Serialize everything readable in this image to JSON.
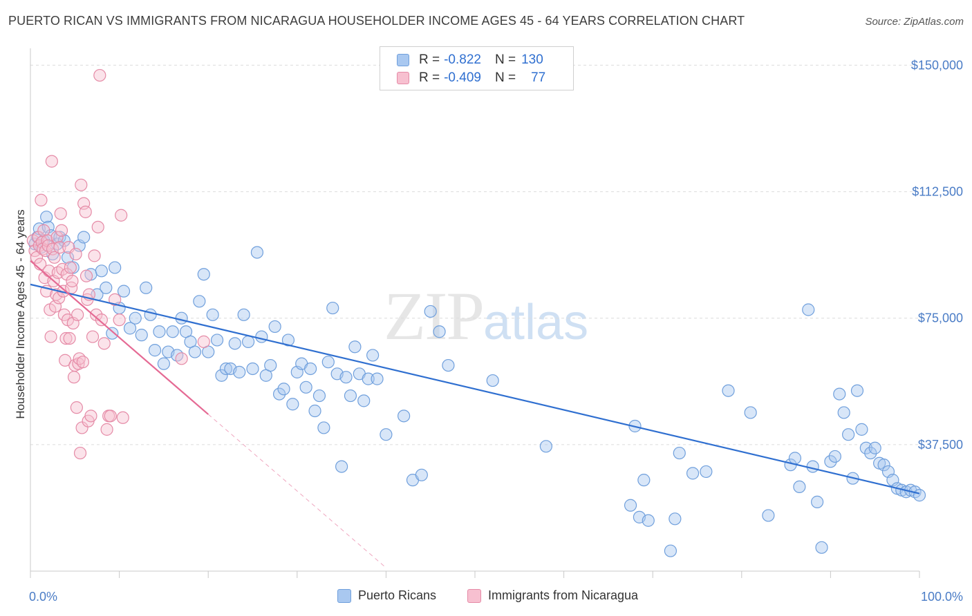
{
  "title": "PUERTO RICAN VS IMMIGRANTS FROM NICARAGUA HOUSEHOLDER INCOME AGES 45 - 64 YEARS CORRELATION CHART",
  "source": "Source: ZipAtlas.com",
  "watermark": {
    "zip": "ZIP",
    "atlas": "atlas"
  },
  "legend": {
    "rows": [
      {
        "r_label": "R =",
        "r_value": "-0.822",
        "n_label": "N =",
        "n_value": "130",
        "color": "#a9c8f0",
        "border": "#6f9fdc"
      },
      {
        "r_label": "R =",
        "r_value": "-0.409",
        "n_label": "N =",
        "n_value": "77",
        "color": "#f7c0d0",
        "border": "#e58aa6"
      }
    ]
  },
  "bottom_legend": [
    {
      "label": "Puerto Ricans",
      "color": "#a9c8f0",
      "border": "#6f9fdc"
    },
    {
      "label": "Immigrants from Nicaragua",
      "color": "#f7c0d0",
      "border": "#e58aa6"
    }
  ],
  "chart_data": {
    "type": "scatter",
    "title": "PUERTO RICAN VS IMMIGRANTS FROM NICARAGUA HOUSEHOLDER INCOME AGES 45 - 64 YEARS CORRELATION CHART",
    "xlabel": "",
    "ylabel": "Householder Income Ages 45 - 64 years",
    "xlim": [
      0,
      100
    ],
    "ylim": [
      0,
      155000
    ],
    "x_tick_labels": [
      "0.0%",
      "100.0%"
    ],
    "y_ticks": [
      37500,
      75000,
      112500,
      150000
    ],
    "y_tick_labels": [
      "$37,500",
      "$75,000",
      "$112,500",
      "$150,000"
    ],
    "grid": true,
    "series": [
      {
        "name": "Puerto Ricans",
        "color": "#a9c8f0",
        "stroke": "#6f9fdc",
        "trend": {
          "x": [
            0,
            100
          ],
          "y": [
            85000,
            23000
          ],
          "color": "#2f6fd0"
        },
        "points": [
          [
            0.5,
            97000
          ],
          [
            0.8,
            99000
          ],
          [
            1.0,
            101500
          ],
          [
            1.2,
            96000
          ],
          [
            1.5,
            98000
          ],
          [
            1.8,
            105000
          ],
          [
            2.0,
            102000
          ],
          [
            2.3,
            99500
          ],
          [
            2.5,
            94000
          ],
          [
            3.0,
            97000
          ],
          [
            3.3,
            99000
          ],
          [
            3.8,
            98000
          ],
          [
            4.2,
            93000
          ],
          [
            4.8,
            90000
          ],
          [
            5.5,
            96500
          ],
          [
            6.0,
            99000
          ],
          [
            6.8,
            88000
          ],
          [
            7.5,
            82000
          ],
          [
            8.0,
            89000
          ],
          [
            8.5,
            84000
          ],
          [
            9.2,
            70500
          ],
          [
            9.5,
            90000
          ],
          [
            10.0,
            78000
          ],
          [
            10.5,
            83000
          ],
          [
            11.2,
            72000
          ],
          [
            11.8,
            75000
          ],
          [
            12.5,
            70000
          ],
          [
            13.0,
            84000
          ],
          [
            13.5,
            76000
          ],
          [
            14.0,
            65500
          ],
          [
            14.5,
            71000
          ],
          [
            15.0,
            61500
          ],
          [
            15.5,
            65000
          ],
          [
            16.0,
            71000
          ],
          [
            16.5,
            64000
          ],
          [
            17.0,
            75000
          ],
          [
            17.5,
            71000
          ],
          [
            18.0,
            68000
          ],
          [
            18.5,
            65000
          ],
          [
            19.0,
            80000
          ],
          [
            19.5,
            88000
          ],
          [
            20.0,
            65000
          ],
          [
            20.5,
            76000
          ],
          [
            21.0,
            68500
          ],
          [
            21.5,
            58000
          ],
          [
            22.0,
            60000
          ],
          [
            22.5,
            60000
          ],
          [
            23.0,
            67500
          ],
          [
            23.5,
            59000
          ],
          [
            24.0,
            76000
          ],
          [
            24.5,
            68000
          ],
          [
            25.0,
            60000
          ],
          [
            25.5,
            94500
          ],
          [
            26.0,
            69500
          ],
          [
            26.5,
            58000
          ],
          [
            27.0,
            61000
          ],
          [
            27.5,
            72500
          ],
          [
            28.0,
            52500
          ],
          [
            28.5,
            54000
          ],
          [
            29.0,
            68500
          ],
          [
            29.5,
            49500
          ],
          [
            30.0,
            59000
          ],
          [
            30.5,
            61500
          ],
          [
            31.0,
            54500
          ],
          [
            31.5,
            60000
          ],
          [
            32.0,
            47500
          ],
          [
            32.5,
            52000
          ],
          [
            33.0,
            42500
          ],
          [
            33.5,
            62000
          ],
          [
            34.0,
            78000
          ],
          [
            34.5,
            58500
          ],
          [
            35.0,
            31000
          ],
          [
            35.5,
            57500
          ],
          [
            36.0,
            52000
          ],
          [
            36.5,
            66500
          ],
          [
            37.0,
            58500
          ],
          [
            37.5,
            50500
          ],
          [
            38.0,
            57000
          ],
          [
            38.5,
            64000
          ],
          [
            39.0,
            57000
          ],
          [
            40.0,
            40500
          ],
          [
            42.0,
            46000
          ],
          [
            43.0,
            27000
          ],
          [
            44.0,
            28500
          ],
          [
            45.0,
            77000
          ],
          [
            46.0,
            71000
          ],
          [
            47.0,
            61000
          ],
          [
            52.0,
            56500
          ],
          [
            58.0,
            37000
          ],
          [
            68.0,
            43000
          ],
          [
            69.0,
            27000
          ],
          [
            67.5,
            19500
          ],
          [
            68.5,
            16000
          ],
          [
            69.5,
            15000
          ],
          [
            72.0,
            6000
          ],
          [
            72.5,
            15500
          ],
          [
            73.0,
            35000
          ],
          [
            74.5,
            29000
          ],
          [
            76.0,
            29500
          ],
          [
            78.5,
            53500
          ],
          [
            81.0,
            47000
          ],
          [
            83.0,
            16500
          ],
          [
            85.5,
            31500
          ],
          [
            86.0,
            33500
          ],
          [
            86.5,
            25000
          ],
          [
            87.5,
            77500
          ],
          [
            88.0,
            31000
          ],
          [
            88.5,
            20500
          ],
          [
            89.0,
            7000
          ],
          [
            90.0,
            32500
          ],
          [
            90.5,
            34000
          ],
          [
            91.0,
            52500
          ],
          [
            91.5,
            47000
          ],
          [
            92.0,
            40500
          ],
          [
            92.5,
            27500
          ],
          [
            93.0,
            53500
          ],
          [
            93.5,
            42000
          ],
          [
            94.0,
            36500
          ],
          [
            94.5,
            35000
          ],
          [
            95.0,
            36500
          ],
          [
            95.5,
            32000
          ],
          [
            96.0,
            31500
          ],
          [
            96.5,
            29500
          ],
          [
            97.0,
            27000
          ],
          [
            97.5,
            24500
          ],
          [
            98.0,
            24000
          ],
          [
            98.5,
            23500
          ],
          [
            99.0,
            24000
          ],
          [
            99.5,
            23500
          ],
          [
            100.0,
            22500
          ]
        ]
      },
      {
        "name": "Immigrants from Nicaragua",
        "color": "#f7c0d0",
        "stroke": "#e58aa6",
        "trend": {
          "x": [
            0,
            20
          ],
          "y": [
            92000,
            46500
          ],
          "color": "#e56a94",
          "dashed_extension_to": [
            40,
            1000
          ]
        },
        "points": [
          [
            0.3,
            98000
          ],
          [
            0.5,
            95000
          ],
          [
            0.7,
            93000
          ],
          [
            0.9,
            99000
          ],
          [
            1.0,
            96500
          ],
          [
            1.1,
            91000
          ],
          [
            1.2,
            110000
          ],
          [
            1.3,
            97500
          ],
          [
            1.4,
            95500
          ],
          [
            1.5,
            101000
          ],
          [
            1.6,
            87000
          ],
          [
            1.7,
            95000
          ],
          [
            1.8,
            83000
          ],
          [
            1.9,
            98000
          ],
          [
            2.0,
            96500
          ],
          [
            2.1,
            89000
          ],
          [
            2.2,
            77500
          ],
          [
            2.3,
            69500
          ],
          [
            2.4,
            121500
          ],
          [
            2.5,
            95500
          ],
          [
            2.6,
            86000
          ],
          [
            2.7,
            93000
          ],
          [
            2.8,
            78500
          ],
          [
            2.9,
            82000
          ],
          [
            3.0,
            99000
          ],
          [
            3.1,
            88500
          ],
          [
            3.2,
            81000
          ],
          [
            3.3,
            96000
          ],
          [
            3.4,
            106000
          ],
          [
            3.5,
            101000
          ],
          [
            3.6,
            89500
          ],
          [
            3.7,
            83000
          ],
          [
            3.8,
            76000
          ],
          [
            3.9,
            62500
          ],
          [
            4.0,
            69000
          ],
          [
            4.1,
            88000
          ],
          [
            4.2,
            74500
          ],
          [
            4.3,
            96000
          ],
          [
            4.4,
            69000
          ],
          [
            4.5,
            90000
          ],
          [
            4.6,
            84000
          ],
          [
            4.7,
            86000
          ],
          [
            4.8,
            73500
          ],
          [
            4.9,
            57500
          ],
          [
            5.0,
            61000
          ],
          [
            5.1,
            94000
          ],
          [
            5.2,
            48500
          ],
          [
            5.3,
            76000
          ],
          [
            5.4,
            61500
          ],
          [
            5.5,
            63000
          ],
          [
            5.6,
            35000
          ],
          [
            5.7,
            114500
          ],
          [
            5.8,
            42500
          ],
          [
            5.9,
            62000
          ],
          [
            6.0,
            109000
          ],
          [
            6.2,
            106500
          ],
          [
            6.3,
            87500
          ],
          [
            6.4,
            80500
          ],
          [
            6.5,
            44500
          ],
          [
            6.6,
            82000
          ],
          [
            6.8,
            46000
          ],
          [
            7.0,
            69500
          ],
          [
            7.2,
            93500
          ],
          [
            7.4,
            76000
          ],
          [
            7.6,
            102000
          ],
          [
            7.8,
            147000
          ],
          [
            8.0,
            74500
          ],
          [
            8.3,
            67500
          ],
          [
            8.6,
            42000
          ],
          [
            8.8,
            46000
          ],
          [
            9.0,
            46000
          ],
          [
            9.5,
            80500
          ],
          [
            10.0,
            74500
          ],
          [
            10.2,
            105500
          ],
          [
            10.4,
            45500
          ],
          [
            17.0,
            63000
          ],
          [
            19.5,
            68000
          ]
        ]
      }
    ]
  }
}
